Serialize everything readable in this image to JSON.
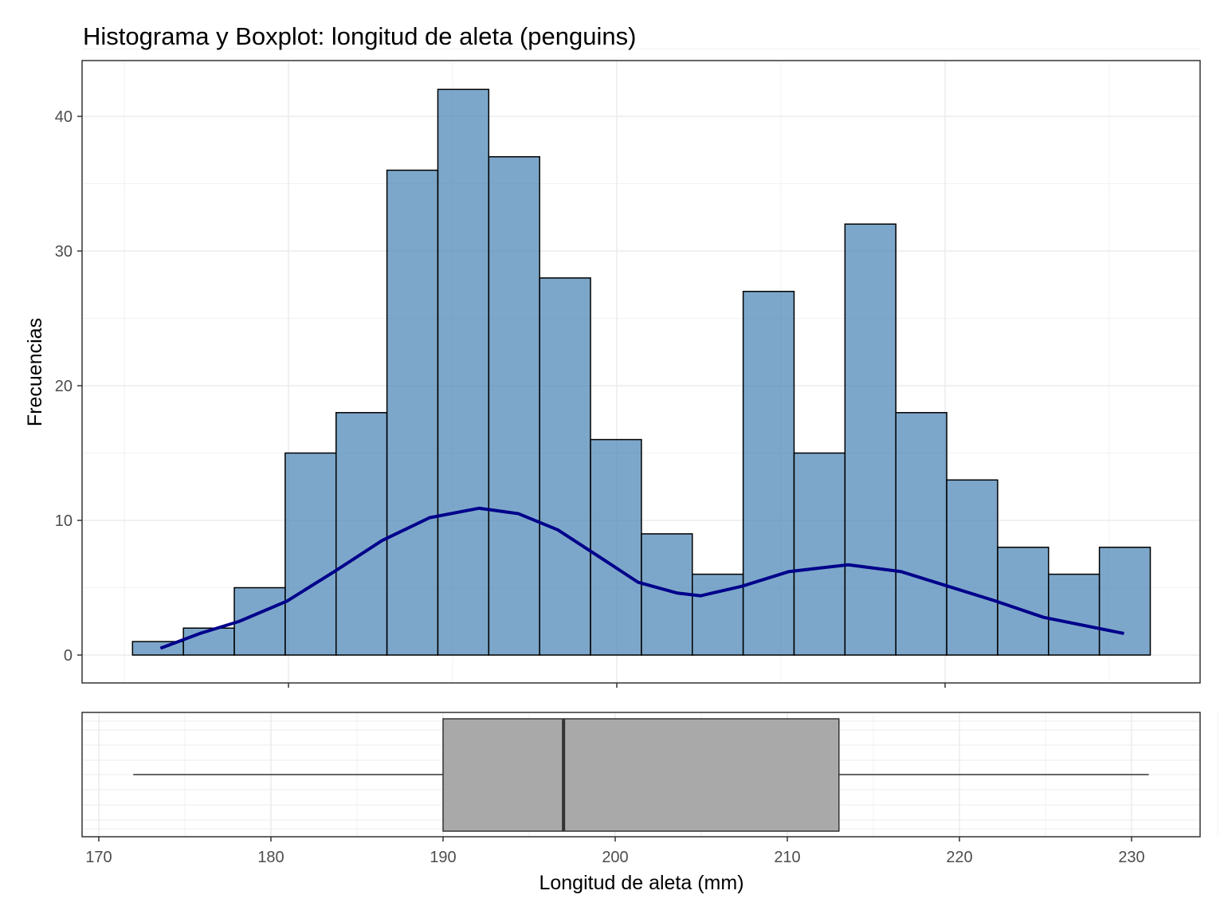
{
  "chart_data": [
    {
      "type": "bar",
      "subtype": "histogram",
      "title": "Histograma y Boxplot: longitud de aleta (penguins)",
      "xlabel": "",
      "ylabel": "Frecuencias",
      "bin_start": 170.5,
      "bin_width": 3.1,
      "values": [
        1,
        2,
        5,
        15,
        18,
        36,
        42,
        37,
        28,
        16,
        9,
        6,
        27,
        15,
        32,
        18,
        13,
        8,
        6,
        8
      ],
      "ylim": [
        -2,
        44
      ],
      "yticks": [
        0,
        10,
        20,
        30,
        40
      ],
      "xticks_unlabeled": [
        180,
        200,
        220
      ],
      "grid": true,
      "colors": {
        "fill": "#4682B4",
        "stroke": "#000000",
        "curve": "#00008B"
      },
      "density_curve": {
        "x": [
          172.2,
          174.6,
          177.0,
          179.9,
          182.8,
          185.7,
          188.6,
          191.6,
          194.0,
          196.4,
          198.8,
          201.3,
          203.7,
          205.1,
          207.6,
          210.5,
          214.1,
          217.3,
          220.2,
          223.1,
          226.0,
          230.9
        ],
        "y": [
          0.5,
          1.6,
          2.5,
          4.0,
          6.2,
          8.5,
          10.2,
          10.9,
          10.5,
          9.3,
          7.4,
          5.4,
          4.6,
          4.4,
          5.1,
          6.2,
          6.7,
          6.2,
          5.1,
          4.0,
          2.8,
          1.6
        ]
      }
    },
    {
      "type": "boxplot",
      "xlabel": "Longitud de aleta (mm)",
      "min": 172,
      "q1": 190,
      "median": 197,
      "q3": 213,
      "max": 231,
      "xlim": [
        169,
        234
      ],
      "xticks": [
        170,
        180,
        190,
        200,
        210,
        220,
        230
      ],
      "colors": {
        "fill": "#A9A9A9",
        "stroke": "#333333"
      }
    }
  ]
}
